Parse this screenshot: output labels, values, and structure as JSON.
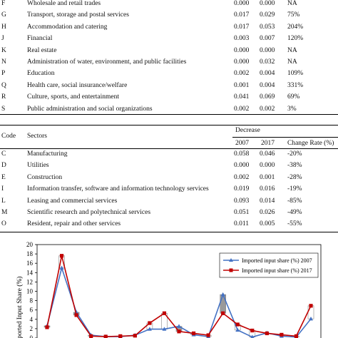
{
  "top_table": {
    "rows": [
      {
        "code": "F",
        "sector": "Wholesale and retail trades",
        "v2007": "0.000",
        "v2017": "0.000",
        "rate": "NA"
      },
      {
        "code": "G",
        "sector": "Transport, storage and postal services",
        "v2007": "0.017",
        "v2017": "0.029",
        "rate": "75%"
      },
      {
        "code": "H",
        "sector": "Accommodation and catering",
        "v2007": "0.017",
        "v2017": "0.053",
        "rate": "204%"
      },
      {
        "code": "J",
        "sector": "Financial",
        "v2007": "0.003",
        "v2017": "0.007",
        "rate": "120%"
      },
      {
        "code": "K",
        "sector": "Real estate",
        "v2007": "0.000",
        "v2017": "0.000",
        "rate": "NA"
      },
      {
        "code": "N",
        "sector": "Administration of water, environment, and public facilities",
        "v2007": "0.000",
        "v2017": "0.032",
        "rate": "NA"
      },
      {
        "code": "P",
        "sector": "Education",
        "v2007": "0.002",
        "v2017": "0.004",
        "rate": "109%"
      },
      {
        "code": "Q",
        "sector": "Health care, social insurance/welfare",
        "v2007": "0.001",
        "v2017": "0.004",
        "rate": "331%"
      },
      {
        "code": "R",
        "sector": "Culture, sports, and entertainment",
        "v2007": "0.041",
        "v2017": "0.069",
        "rate": "69%"
      },
      {
        "code": "S",
        "sector": "Public administration and social organizations",
        "v2007": "0.002",
        "v2017": "0.002",
        "rate": "3%"
      }
    ]
  },
  "bottom_table": {
    "header": {
      "code": "Code",
      "sectors": "Sectors",
      "group": "Decrease",
      "y2007": "2007",
      "y2017": "2017",
      "rate": "Change Rate (%)"
    },
    "rows": [
      {
        "code": "C",
        "sector": "Manufacturing",
        "v2007": "0.058",
        "v2017": "0.046",
        "rate": "-20%"
      },
      {
        "code": "D",
        "sector": "Utilities",
        "v2007": "0.000",
        "v2017": "0.000",
        "rate": "-38%"
      },
      {
        "code": "E",
        "sector": "Construction",
        "v2007": "0.002",
        "v2017": "0.001",
        "rate": "-28%"
      },
      {
        "code": "I",
        "sector": "Information transfer, software and information technology services",
        "v2007": "0.019",
        "v2017": "0.016",
        "rate": "-19%"
      },
      {
        "code": "L",
        "sector": "Leasing and commercial services",
        "v2007": "0.093",
        "v2017": "0.014",
        "rate": "-85%"
      },
      {
        "code": "M",
        "sector": "Scientific research and polytechnical services",
        "v2007": "0.051",
        "v2017": "0.026",
        "rate": "-49%"
      },
      {
        "code": "O",
        "sector": "Resident, repair and other services",
        "v2007": "0.011",
        "v2017": "0.005",
        "rate": "-55%"
      }
    ]
  },
  "chart_data": {
    "type": "line",
    "ylabel": "Imported Input Share (%)",
    "ylim": [
      0,
      20
    ],
    "yticks": [
      "0",
      "2",
      "4",
      "6",
      "8",
      "10",
      "12",
      "14",
      "16",
      "18",
      "20"
    ],
    "grid": false,
    "legend_position": "top-right",
    "series": [
      {
        "name": "Imported input share (%) 2007",
        "color": "#4472c4",
        "marker": "triangle",
        "values": [
          2.6,
          15.0,
          5.5,
          0.6,
          0.3,
          0.3,
          0.6,
          1.9,
          1.9,
          2.5,
          0.7,
          0.3,
          9.3,
          1.7,
          0.2,
          1.1,
          0.4,
          0.2,
          4.1
        ]
      },
      {
        "name": "Imported input share (%) 2017",
        "color": "#c00000",
        "marker": "square",
        "values": [
          2.3,
          17.6,
          4.9,
          0.4,
          0.3,
          0.4,
          0.5,
          3.2,
          5.3,
          1.4,
          1.0,
          0.6,
          5.3,
          2.9,
          1.6,
          1.0,
          0.7,
          0.4,
          6.9
        ]
      }
    ]
  }
}
